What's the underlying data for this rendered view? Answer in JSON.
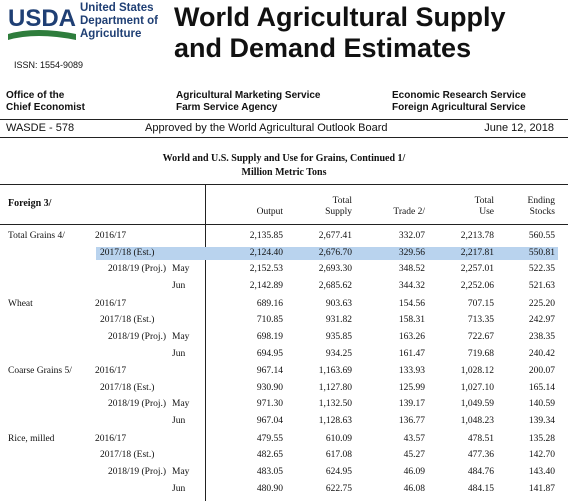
{
  "header": {
    "logo": "USDA",
    "department": [
      "United States",
      "Department of",
      "Agriculture"
    ],
    "title": [
      "World Agricultural Supply",
      "and Demand Estimates"
    ],
    "issn": "ISSN: 1554-9089"
  },
  "agencies": [
    [
      "Office of the",
      "Chief Economist"
    ],
    [
      "Agricultural Marketing Service",
      "Farm Service Agency"
    ],
    [
      "Economic Research Service",
      "Foreign Agricultural Service"
    ]
  ],
  "bar": {
    "report": "WASDE - 578",
    "approved": "Approved by the World Agricultural Outlook Board",
    "date": "June 12, 2018"
  },
  "table": {
    "title": "World and U.S. Supply and Use for Grains, Continued  1/",
    "subtitle": "Million Metric Tons",
    "corner": "Foreign  3/",
    "columns": [
      [
        "Output"
      ],
      [
        "Total",
        "Supply"
      ],
      [
        "Trade 2/"
      ],
      [
        "Total",
        "Use"
      ],
      [
        "Ending",
        "Stocks"
      ]
    ],
    "groups": [
      {
        "region": "Total Grains  4/",
        "rows": [
          {
            "year": "2016/17",
            "values": [
              "2,135.85",
              "2,677.41",
              "332.07",
              "2,213.78",
              "560.55"
            ]
          },
          {
            "year": "2017/18 (Est.)",
            "highlight": true,
            "values": [
              "2,124.40",
              "2,676.70",
              "329.56",
              "2,217.81",
              "550.81"
            ]
          },
          {
            "year": "2018/19 (Proj.)",
            "month": "May",
            "values": [
              "2,152.53",
              "2,693.30",
              "348.52",
              "2,257.01",
              "522.35"
            ]
          },
          {
            "month": "Jun",
            "values": [
              "2,142.89",
              "2,685.62",
              "344.32",
              "2,252.06",
              "521.63"
            ]
          }
        ]
      },
      {
        "region": "Wheat",
        "rows": [
          {
            "year": "2016/17",
            "values": [
              "689.16",
              "903.63",
              "154.56",
              "707.15",
              "225.20"
            ]
          },
          {
            "year": "2017/18 (Est.)",
            "values": [
              "710.85",
              "931.82",
              "158.31",
              "713.35",
              "242.97"
            ]
          },
          {
            "year": "2018/19 (Proj.)",
            "month": "May",
            "values": [
              "698.19",
              "935.85",
              "163.26",
              "722.67",
              "238.35"
            ]
          },
          {
            "month": "Jun",
            "values": [
              "694.95",
              "934.25",
              "161.47",
              "719.68",
              "240.42"
            ]
          }
        ]
      },
      {
        "region": "Coarse Grains  5/",
        "rows": [
          {
            "year": "2016/17",
            "values": [
              "967.14",
              "1,163.69",
              "133.93",
              "1,028.12",
              "200.07"
            ]
          },
          {
            "year": "2017/18 (Est.)",
            "values": [
              "930.90",
              "1,127.80",
              "125.99",
              "1,027.10",
              "165.14"
            ]
          },
          {
            "year": "2018/19 (Proj.)",
            "month": "May",
            "values": [
              "971.30",
              "1,132.50",
              "139.17",
              "1,049.59",
              "140.59"
            ]
          },
          {
            "month": "Jun",
            "values": [
              "967.04",
              "1,128.63",
              "136.77",
              "1,048.23",
              "139.34"
            ]
          }
        ]
      },
      {
        "region": "Rice, milled",
        "rows": [
          {
            "year": "2016/17",
            "values": [
              "479.55",
              "610.09",
              "43.57",
              "478.51",
              "135.28"
            ]
          },
          {
            "year": "2017/18 (Est.)",
            "values": [
              "482.65",
              "617.08",
              "45.27",
              "477.36",
              "142.70"
            ]
          },
          {
            "year": "2018/19 (Proj.)",
            "month": "May",
            "values": [
              "483.05",
              "624.95",
              "46.09",
              "484.76",
              "143.40"
            ]
          },
          {
            "month": "Jun",
            "values": [
              "480.90",
              "622.75",
              "46.08",
              "484.15",
              "141.87"
            ]
          }
        ]
      }
    ]
  }
}
